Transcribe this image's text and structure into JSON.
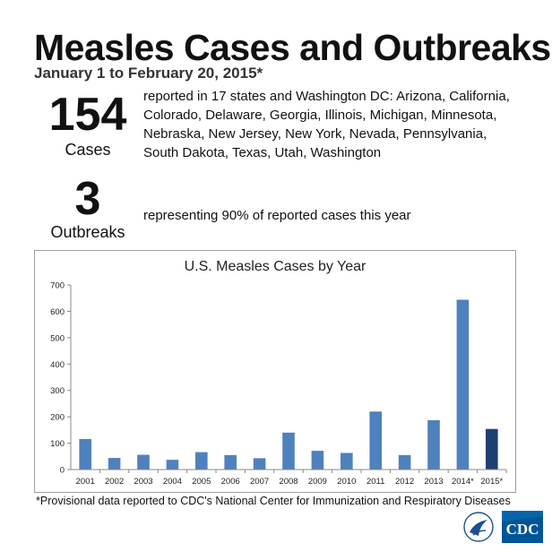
{
  "header": {
    "title": "Measles Cases and Outbreaks",
    "subtitle": "January 1 to February 20, 2015*"
  },
  "stats": {
    "cases": {
      "number": "154",
      "label": "Cases",
      "description": "reported in 17 states and Washington DC: Arizona, California, Colorado, Delaware, Georgia, Illinois, Michigan, Minnesota, Nebraska, New Jersey, New York, Nevada, Pennsylvania, South Dakota, Texas, Utah, Washington"
    },
    "outbreaks": {
      "number": "3",
      "label": "Outbreaks",
      "description": "representing 90% of reported cases this year"
    }
  },
  "chart_data": {
    "type": "bar",
    "title": "U.S. Measles Cases by Year",
    "xlabel": "",
    "ylabel": "",
    "categories": [
      "2001",
      "2002",
      "2003",
      "2004",
      "2005",
      "2006",
      "2007",
      "2008",
      "2009",
      "2010",
      "2011",
      "2012",
      "2013",
      "2014*",
      "2015*"
    ],
    "values": [
      116,
      44,
      56,
      37,
      66,
      55,
      43,
      140,
      71,
      63,
      220,
      55,
      187,
      644,
      154
    ],
    "ylim": [
      0,
      700
    ],
    "yticks": [
      0,
      100,
      200,
      300,
      400,
      500,
      600,
      700
    ],
    "grid": false,
    "legend": "none",
    "colors": {
      "bar": "#4f81bd",
      "highlight": "#1f3f73",
      "highlight_category": "2015*"
    }
  },
  "footnote": "*Provisional data reported to CDC's National Center for Immunization and Respiratory Diseases",
  "logos": {
    "hhs": "hhs-eagle-seal",
    "cdc": "CDC"
  }
}
